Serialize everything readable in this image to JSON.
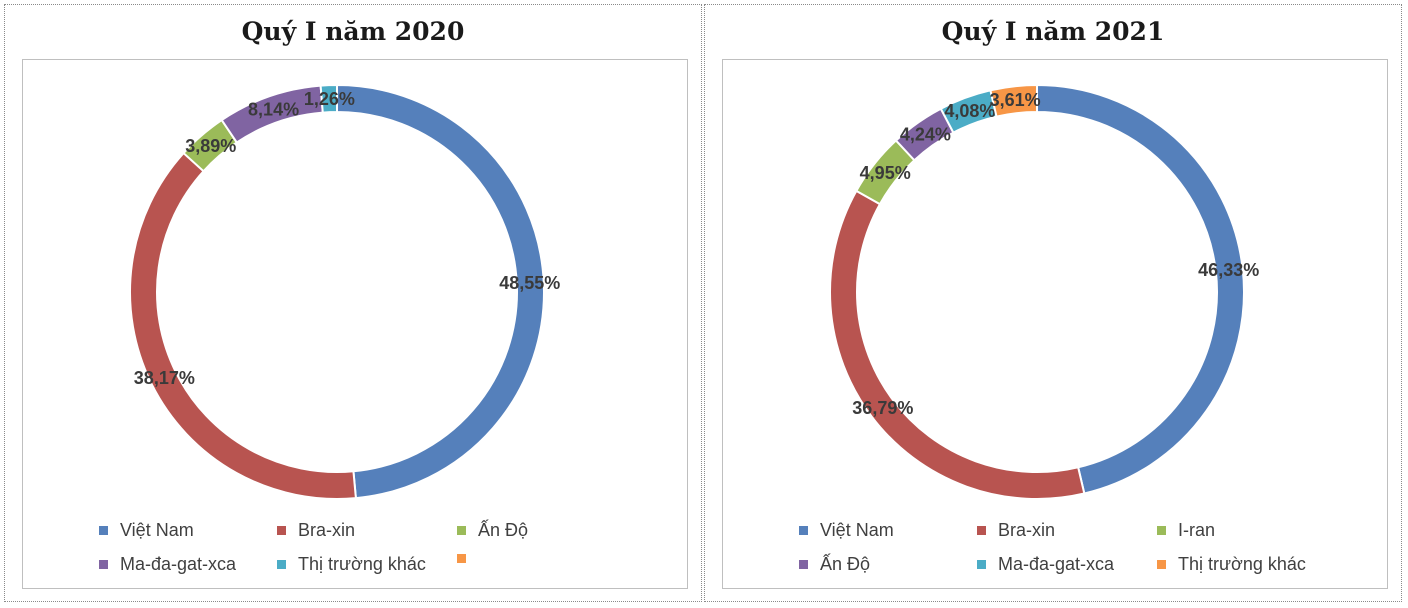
{
  "chart_data": [
    {
      "type": "pie",
      "style": "donut",
      "title": "Quý I năm 2020",
      "slices": [
        {
          "label": "Việt Nam",
          "value": 48.55,
          "value_label": "48,55%",
          "color": "#5580BB"
        },
        {
          "label": "Bra-xin",
          "value": 38.17,
          "value_label": "38,17%",
          "color": "#B85450"
        },
        {
          "label": "Ấn Độ",
          "value": 3.89,
          "value_label": "3,89%",
          "color": "#9BBB59"
        },
        {
          "label": "Ma-đa-gat-xca",
          "value": 8.14,
          "value_label": "8,14%",
          "color": "#8064A2"
        },
        {
          "label": "Thị trường khác",
          "value": 1.26,
          "value_label": "1,26%",
          "color": "#4BACC6"
        }
      ],
      "legend_extra": [
        {
          "label": "",
          "color": "#F79646"
        }
      ]
    },
    {
      "type": "pie",
      "style": "donut",
      "title": "Quý I năm 2021",
      "slices": [
        {
          "label": "Việt Nam",
          "value": 46.33,
          "value_label": "46,33%",
          "color": "#5580BB"
        },
        {
          "label": "Bra-xin",
          "value": 36.79,
          "value_label": "36,79%",
          "color": "#B85450"
        },
        {
          "label": "I-ran",
          "value": 4.95,
          "value_label": "4,95%",
          "color": "#9BBB59"
        },
        {
          "label": "Ấn Độ",
          "value": 4.24,
          "value_label": "4,24%",
          "color": "#8064A2"
        },
        {
          "label": "Ma-đa-gat-xca",
          "value": 4.08,
          "value_label": "4,08%",
          "color": "#4BACC6"
        },
        {
          "label": "Thị trường khác",
          "value": 3.61,
          "value_label": "3,61%",
          "color": "#F79646"
        }
      ],
      "legend_extra": []
    }
  ]
}
